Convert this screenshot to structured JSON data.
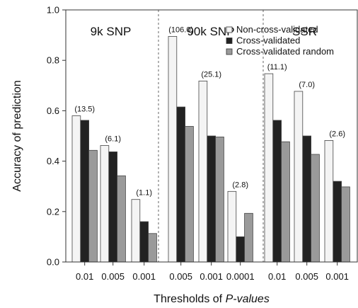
{
  "chart_data": {
    "type": "bar",
    "ylabel": "Accuracy of prediction",
    "xlabel_prefix": "Thresholds of ",
    "xlabel_italic": "P-values",
    "ylim": [
      0,
      1.0
    ],
    "yticks": [
      "0.0",
      "0.2",
      "0.4",
      "0.6",
      "0.8",
      "1.0"
    ],
    "legend_position": "top-right",
    "series": [
      {
        "name": "Non-cross-validated",
        "color": "#f4f4f4"
      },
      {
        "name": "Cross-validated",
        "color": "#222222"
      },
      {
        "name": "Cross-validated random",
        "color": "#9a9a9a"
      }
    ],
    "panels": [
      {
        "title": "9k SNP",
        "groups": [
          {
            "category": "0.01",
            "values": [
              0.58,
              0.562,
              0.443
            ],
            "label": "(13.5)"
          },
          {
            "category": "0.005",
            "values": [
              0.462,
              0.437,
              0.342
            ],
            "label": "(6.1)"
          },
          {
            "category": "0.001",
            "values": [
              0.248,
              0.16,
              0.113
            ],
            "label": "(1.1)"
          }
        ]
      },
      {
        "title": "90k SNP",
        "groups": [
          {
            "category": "0.005",
            "values": [
              0.895,
              0.615,
              0.538
            ],
            "label": "(106.0)"
          },
          {
            "category": "0.001",
            "values": [
              0.718,
              0.5,
              0.496
            ],
            "label": "(25.1)"
          },
          {
            "category": "0.0001",
            "values": [
              0.28,
              0.1,
              0.193
            ],
            "label": "(2.8)"
          }
        ]
      },
      {
        "title": "SSR",
        "groups": [
          {
            "category": "0.01",
            "values": [
              0.747,
              0.562,
              0.477
            ],
            "label": "(11.1)"
          },
          {
            "category": "0.005",
            "values": [
              0.677,
              0.5,
              0.427
            ],
            "label": "(7.0)"
          },
          {
            "category": "0.001",
            "values": [
              0.482,
              0.32,
              0.298
            ],
            "label": "(2.6)"
          }
        ]
      }
    ]
  }
}
